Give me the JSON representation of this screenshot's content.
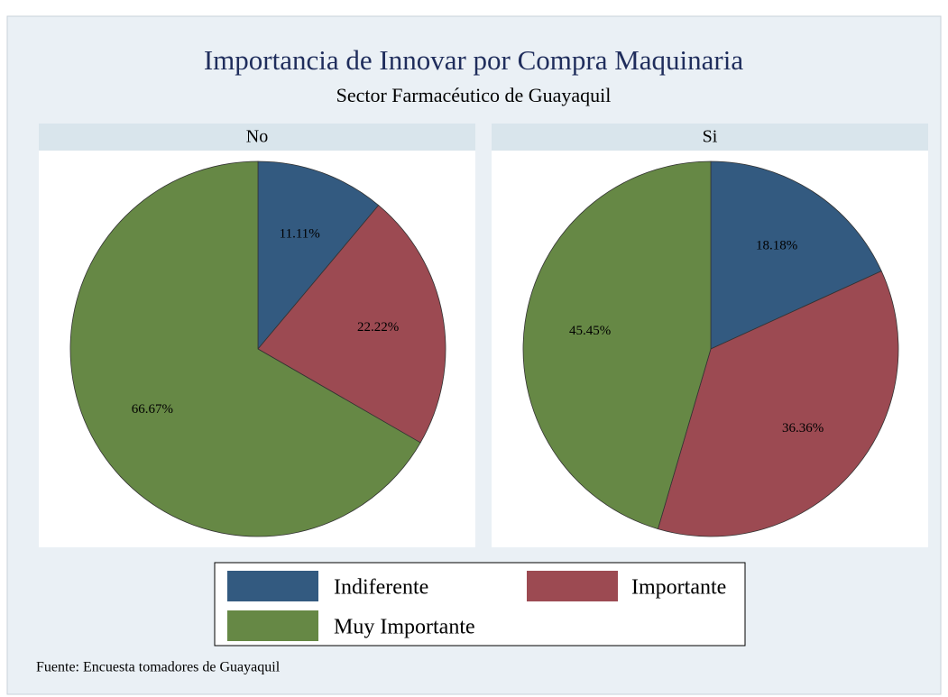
{
  "chart_data": {
    "type": "pie",
    "title": "Importancia de Innovar por Compra Maquinaria",
    "subtitle": "Sector Farmacéutico de Guayaquil",
    "note": "Fuente: Encuesta tomadores de Guayaquil",
    "categories": [
      "Indiferente",
      "Importante",
      "Muy Importante"
    ],
    "colors": [
      "#335a80",
      "#9c4a52",
      "#668845"
    ],
    "panels": [
      {
        "name": "No",
        "values": [
          11.11,
          22.22,
          66.67
        ],
        "value_labels": [
          "11.11%",
          "22.22%",
          "66.67%"
        ]
      },
      {
        "name": "Si",
        "values": [
          18.18,
          36.36,
          45.45
        ],
        "value_labels": [
          "18.18%",
          "36.36%",
          "45.45%"
        ]
      }
    ]
  }
}
